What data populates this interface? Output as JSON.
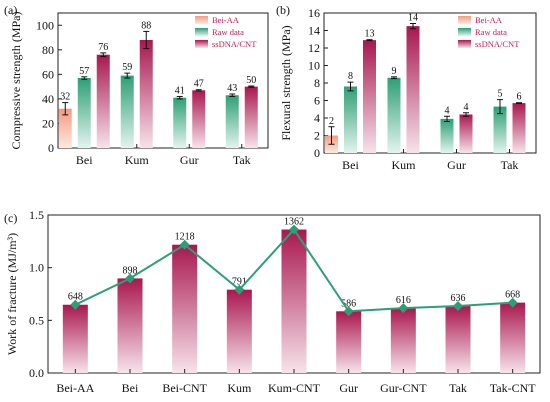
{
  "chart_data": [
    {
      "panel": "(a)",
      "type": "bar",
      "ylabel": "Compressive strength (MPa)",
      "ylim": [
        0,
        110
      ],
      "yticks": [
        0,
        20,
        40,
        60,
        80,
        100
      ],
      "categories": [
        "Bei",
        "Kum",
        "Gur",
        "Tak"
      ],
      "legend_position": "top-right",
      "series": [
        {
          "name": "Bei-AA",
          "values": [
            32,
            null,
            null,
            null
          ],
          "labels": [
            "32",
            "",
            "",
            ""
          ],
          "errors": [
            5,
            0,
            0,
            0
          ],
          "color": "#f39b7f"
        },
        {
          "name": "Raw data",
          "values": [
            57,
            59,
            41,
            43
          ],
          "labels": [
            "57",
            "59",
            "41",
            "43"
          ],
          "errors": [
            1,
            2,
            1,
            1
          ],
          "color": "#2d9f76"
        },
        {
          "name": "ssDNA/CNT",
          "values": [
            76,
            88,
            47,
            50
          ],
          "labels": [
            "76",
            "88",
            "47",
            "50"
          ],
          "errors": [
            1.5,
            7,
            0.5,
            0.5
          ],
          "color": "#a8174f"
        }
      ]
    },
    {
      "panel": "(b)",
      "type": "bar",
      "ylabel": "Flexural strength (MPa)",
      "ylim": [
        0,
        16
      ],
      "yticks": [
        0,
        2,
        4,
        6,
        8,
        10,
        12,
        14,
        16
      ],
      "categories": [
        "Bei",
        "Kum",
        "Gur",
        "Tak"
      ],
      "legend_position": "top-right",
      "series": [
        {
          "name": "Bei-AA",
          "values": [
            2,
            null,
            null,
            null
          ],
          "labels": [
            "2",
            "",
            "",
            ""
          ],
          "errors": [
            1,
            0,
            0,
            0
          ],
          "color": "#f39b7f"
        },
        {
          "name": "Raw data",
          "values": [
            7.6,
            8.6,
            3.9,
            5.3
          ],
          "labels": [
            "8",
            "9",
            "4",
            "5"
          ],
          "errors": [
            0.5,
            0.1,
            0.3,
            0.8
          ],
          "color": "#2d9f76"
        },
        {
          "name": "ssDNA/CNT",
          "values": [
            12.9,
            14.5,
            4.4,
            5.7
          ],
          "labels": [
            "13",
            "14",
            "4",
            "6"
          ],
          "errors": [
            0.05,
            0.3,
            0.2,
            0.05
          ],
          "color": "#a8174f"
        }
      ]
    },
    {
      "panel": "(c)",
      "type": "bar",
      "ylabel": "Work of fracture (MJ/m³)",
      "ylim": [
        0,
        1.5
      ],
      "yticks": [
        "0.0",
        "0.5",
        "1.0",
        "1.5"
      ],
      "categories": [
        "Bei-AA",
        "Bei",
        "Bei-CNT",
        "Kum",
        "Kum-CNT",
        "Gur",
        "Gur-CNT",
        "Tak",
        "Tak-CNT"
      ],
      "values": [
        0.648,
        0.898,
        1.218,
        0.791,
        1.362,
        0.586,
        0.616,
        0.636,
        0.668
      ],
      "labels": [
        "648",
        "898",
        "1218",
        "791",
        "1362",
        "586",
        "616",
        "636",
        "668"
      ],
      "bar_color": "#a8174f",
      "line_color": "#2d9f76",
      "line_overlay": true
    }
  ]
}
